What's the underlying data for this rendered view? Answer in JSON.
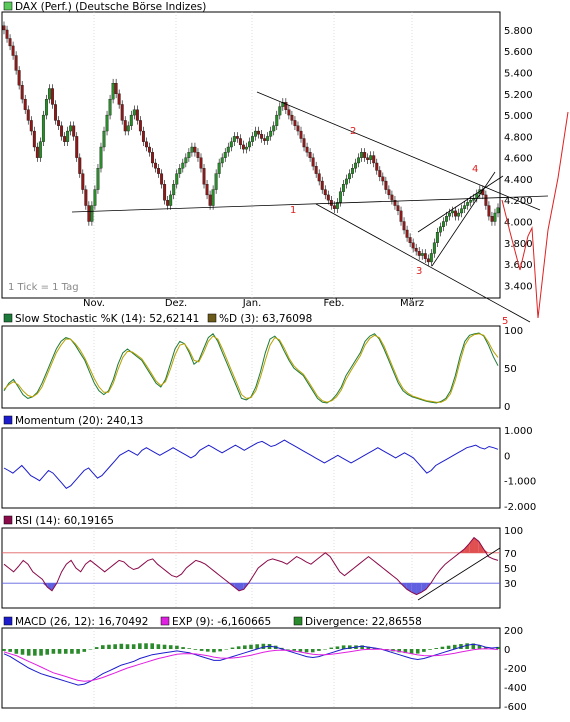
{
  "colors": {
    "frame": "#000000",
    "grid": "#c8c8c8",
    "candle_up": "#2b8a2b",
    "candle_down": "#8b1a1a",
    "annotation": "#e02020",
    "k_line": "#1e7a3a",
    "d_line": "#b8a000",
    "momentum_line": "#1c1ccc",
    "rsi_line": "#8a0a4a",
    "rsi_upper": "#e06060",
    "rsi_lower": "#6060e0",
    "rsi_fill_high": "#e05050",
    "rsi_fill_low": "#6060e0",
    "macd_line": "#1c1ccc",
    "exp_line": "#e020e0",
    "divergence_bar": "#2b8a2b"
  },
  "chart_data": [
    {
      "type": "candlestick",
      "legend_swatch_color": "#5ac85a",
      "title": "DAX (Perf.) (Deutsche Börse Indizes)",
      "note": "1 Tick = 1 Tag",
      "xlabels": [
        "Nov.",
        "Dez.",
        "Jan.",
        "Feb.",
        "März"
      ],
      "yticks": [
        "5.800",
        "5.600",
        "5.400",
        "5.200",
        "5.000",
        "4.800",
        "4.600",
        "4.400",
        "4.200",
        "4.000",
        "3.800",
        "3.600",
        "3.400"
      ],
      "ylim": [
        3300,
        5950
      ],
      "close": [
        5800,
        5720,
        5650,
        5560,
        5420,
        5280,
        5150,
        5050,
        4950,
        4850,
        4700,
        4600,
        4750,
        5000,
        5150,
        5250,
        5100,
        4950,
        4900,
        4800,
        4750,
        4850,
        4900,
        4800,
        4600,
        4450,
        4300,
        4150,
        4000,
        4150,
        4300,
        4500,
        4700,
        4850,
        5000,
        5150,
        5300,
        5200,
        5100,
        4950,
        4850,
        4900,
        5000,
        5050,
        4950,
        4850,
        4750,
        4700,
        4650,
        4550,
        4500,
        4450,
        4350,
        4200,
        4150,
        4250,
        4350,
        4450,
        4500,
        4550,
        4600,
        4650,
        4700,
        4650,
        4600,
        4500,
        4350,
        4250,
        4150,
        4300,
        4450,
        4550,
        4600,
        4650,
        4700,
        4750,
        4800,
        4780,
        4720,
        4680,
        4700,
        4750,
        4800,
        4850,
        4820,
        4780,
        4760,
        4800,
        4850,
        4900,
        5000,
        5080,
        5120,
        5050,
        5000,
        4950,
        4900,
        4850,
        4780,
        4700,
        4650,
        4600,
        4520,
        4450,
        4380,
        4300,
        4250,
        4200,
        4150,
        4120,
        4180,
        4280,
        4350,
        4400,
        4450,
        4500,
        4550,
        4600,
        4650,
        4600,
        4580,
        4620,
        4550,
        4480,
        4420,
        4380,
        4300,
        4250,
        4200,
        4150,
        4100,
        4000,
        3920,
        3850,
        3800,
        3750,
        3720,
        3680,
        3700,
        3650,
        3620,
        3700,
        3800,
        3900,
        3950,
        4000,
        4050,
        4080,
        4100,
        4050,
        4080,
        4120,
        4150,
        4180,
        4200,
        4220,
        4260,
        4300,
        4250,
        4150,
        4050,
        4000,
        4080,
        4130
      ],
      "annotations": [
        "1",
        "2",
        "3",
        "4",
        "5"
      ]
    },
    {
      "type": "line",
      "legend": [
        {
          "label": "Slow Stochastic %K (14): 52,62141",
          "color": "#1e7a3a"
        },
        {
          "label": "%D (3): 63,76098",
          "color": "#6b5a1a"
        }
      ],
      "yticks": [
        "100",
        "50",
        "0"
      ],
      "ylim": [
        0,
        100
      ],
      "series": [
        {
          "name": "Slow Stochastic %K (14)",
          "values": [
            20,
            30,
            35,
            25,
            15,
            10,
            12,
            18,
            30,
            45,
            60,
            75,
            85,
            90,
            88,
            80,
            70,
            60,
            45,
            30,
            20,
            15,
            20,
            35,
            55,
            70,
            75,
            70,
            65,
            60,
            50,
            40,
            30,
            25,
            35,
            55,
            75,
            85,
            82,
            70,
            55,
            60,
            75,
            90,
            95,
            85,
            70,
            55,
            40,
            25,
            10,
            8,
            12,
            25,
            45,
            70,
            88,
            92,
            85,
            72,
            60,
            50,
            45,
            40,
            30,
            20,
            10,
            5,
            4,
            8,
            15,
            25,
            40,
            50,
            60,
            70,
            85,
            92,
            95,
            88,
            75,
            60,
            45,
            30,
            20,
            15,
            12,
            10,
            8,
            6,
            5,
            4,
            6,
            10,
            20,
            40,
            65,
            85,
            93,
            95,
            96,
            92,
            80,
            65,
            53
          ]
        },
        {
          "name": "%D (3)",
          "values": [
            22,
            28,
            32,
            28,
            20,
            14,
            12,
            16,
            25,
            40,
            55,
            70,
            80,
            88,
            88,
            82,
            74,
            63,
            50,
            36,
            25,
            18,
            18,
            30,
            48,
            64,
            72,
            71,
            67,
            62,
            53,
            43,
            33,
            27,
            32,
            48,
            67,
            80,
            82,
            73,
            60,
            58,
            70,
            85,
            92,
            88,
            75,
            60,
            45,
            30,
            15,
            10,
            11,
            20,
            38,
            60,
            80,
            90,
            87,
            76,
            63,
            53,
            47,
            42,
            33,
            23,
            13,
            7,
            5,
            7,
            12,
            21,
            35,
            46,
            56,
            66,
            80,
            89,
            93,
            90,
            79,
            64,
            49,
            34,
            23,
            17,
            13,
            11,
            9,
            7,
            6,
            5,
            5,
            8,
            16,
            34,
            58,
            80,
            90,
            94,
            95,
            93,
            84,
            72,
            64
          ]
        }
      ]
    },
    {
      "type": "line",
      "legend": [
        {
          "label": "Momentum (20): 240,13",
          "color": "#1c1ccc"
        }
      ],
      "yticks": [
        "1.000",
        "0",
        "-1.000",
        "-2.000"
      ],
      "ylim": [
        -2000,
        1000
      ],
      "series": [
        {
          "name": "Momentum (20)",
          "values": [
            -500,
            -600,
            -700,
            -550,
            -400,
            -600,
            -800,
            -900,
            -1000,
            -800,
            -600,
            -700,
            -900,
            -1100,
            -1300,
            -1200,
            -1000,
            -800,
            -600,
            -500,
            -700,
            -900,
            -800,
            -600,
            -400,
            -200,
            0,
            100,
            200,
            100,
            0,
            200,
            300,
            200,
            100,
            0,
            100,
            200,
            300,
            200,
            100,
            0,
            -100,
            0,
            200,
            300,
            400,
            300,
            200,
            100,
            200,
            300,
            400,
            300,
            200,
            300,
            400,
            500,
            550,
            450,
            350,
            400,
            500,
            600,
            500,
            400,
            300,
            200,
            100,
            0,
            -100,
            -200,
            -300,
            -200,
            -100,
            0,
            -100,
            -200,
            -300,
            -200,
            -100,
            0,
            100,
            200,
            300,
            200,
            100,
            0,
            -100,
            0,
            100,
            0,
            -100,
            -300,
            -500,
            -700,
            -600,
            -400,
            -300,
            -200,
            -100,
            0,
            100,
            200,
            300,
            350,
            400,
            300,
            250,
            350,
            300,
            240
          ]
        }
      ]
    },
    {
      "type": "line",
      "legend": [
        {
          "label": "RSI (14): 60,19165",
          "color": "#8a0a4a"
        }
      ],
      "yticks": [
        "100",
        "70",
        "50",
        "30"
      ],
      "ylim": [
        0,
        100
      ],
      "reference_lines": [
        70,
        30
      ],
      "series": [
        {
          "name": "RSI (14)",
          "values": [
            55,
            50,
            45,
            52,
            60,
            55,
            45,
            40,
            35,
            25,
            20,
            30,
            45,
            55,
            60,
            50,
            45,
            55,
            60,
            55,
            50,
            45,
            50,
            55,
            60,
            58,
            52,
            48,
            50,
            55,
            60,
            62,
            55,
            50,
            45,
            40,
            38,
            42,
            50,
            55,
            60,
            58,
            55,
            50,
            45,
            40,
            35,
            30,
            25,
            20,
            22,
            30,
            40,
            50,
            55,
            60,
            62,
            60,
            58,
            55,
            60,
            65,
            62,
            58,
            55,
            60,
            65,
            70,
            65,
            55,
            45,
            40,
            45,
            50,
            55,
            60,
            65,
            60,
            55,
            50,
            45,
            40,
            35,
            28,
            22,
            18,
            15,
            18,
            22,
            30,
            40,
            48,
            55,
            60,
            65,
            70,
            75,
            82,
            90,
            85,
            75,
            65,
            62,
            60
          ]
        }
      ]
    },
    {
      "type": "bar+line",
      "legend": [
        {
          "label": "MACD (26, 12): 16,70492",
          "color": "#1c1ccc"
        },
        {
          "label": "EXP (9): -6,160665",
          "color": "#e020e0"
        },
        {
          "label": "Divergence: 22,86558",
          "color": "#2b8a2b"
        }
      ],
      "yticks": [
        "200",
        "0",
        "-200",
        "-400",
        "-600"
      ],
      "ylim": [
        -600,
        200
      ],
      "series": [
        {
          "name": "MACD (26, 12)",
          "values": [
            -50,
            -80,
            -120,
            -160,
            -200,
            -230,
            -260,
            -280,
            -300,
            -320,
            -340,
            -360,
            -380,
            -370,
            -340,
            -300,
            -260,
            -230,
            -200,
            -170,
            -150,
            -130,
            -100,
            -80,
            -60,
            -50,
            -40,
            -30,
            -20,
            -30,
            -40,
            -60,
            -80,
            -100,
            -120,
            -120,
            -100,
            -80,
            -60,
            -40,
            -20,
            0,
            20,
            30,
            20,
            0,
            -20,
            -40,
            -60,
            -80,
            -90,
            -80,
            -60,
            -40,
            -20,
            0,
            10,
            20,
            30,
            20,
            10,
            0,
            -20,
            -40,
            -60,
            -80,
            -100,
            -110,
            -100,
            -80,
            -60,
            -40,
            -20,
            0,
            20,
            40,
            50,
            40,
            20,
            10,
            16
          ]
        },
        {
          "name": "EXP (9)",
          "values": [
            -30,
            -50,
            -70,
            -100,
            -130,
            -160,
            -190,
            -220,
            -250,
            -270,
            -290,
            -310,
            -330,
            -340,
            -335,
            -320,
            -300,
            -275,
            -250,
            -225,
            -200,
            -180,
            -160,
            -140,
            -120,
            -100,
            -85,
            -70,
            -55,
            -50,
            -48,
            -52,
            -60,
            -72,
            -85,
            -95,
            -98,
            -95,
            -88,
            -78,
            -65,
            -50,
            -35,
            -22,
            -15,
            -12,
            -15,
            -22,
            -32,
            -45,
            -55,
            -60,
            -60,
            -55,
            -47,
            -38,
            -28,
            -18,
            -8,
            -4,
            -2,
            -3,
            -8,
            -15,
            -25,
            -37,
            -50,
            -62,
            -70,
            -72,
            -70,
            -64,
            -55,
            -44,
            -32,
            -20,
            -8,
            0,
            2,
            0,
            -6
          ]
        },
        {
          "name": "Divergence",
          "values": [
            -20,
            -30,
            -50,
            -60,
            -70,
            -70,
            -70,
            -60,
            -50,
            -50,
            -50,
            -50,
            -50,
            -30,
            -5,
            20,
            40,
            45,
            50,
            55,
            50,
            50,
            60,
            60,
            60,
            50,
            45,
            40,
            35,
            20,
            8,
            -8,
            -20,
            -28,
            -35,
            -25,
            -2,
            15,
            28,
            38,
            45,
            50,
            55,
            52,
            35,
            12,
            -5,
            -18,
            -28,
            -35,
            -35,
            -20,
            0,
            15,
            27,
            38,
            38,
            38,
            38,
            24,
            12,
            3,
            -12,
            -25,
            -35,
            -43,
            -50,
            -48,
            -30,
            -8,
            10,
            24,
            35,
            44,
            52,
            60,
            58,
            40,
            18,
            10,
            22
          ]
        }
      ]
    }
  ]
}
